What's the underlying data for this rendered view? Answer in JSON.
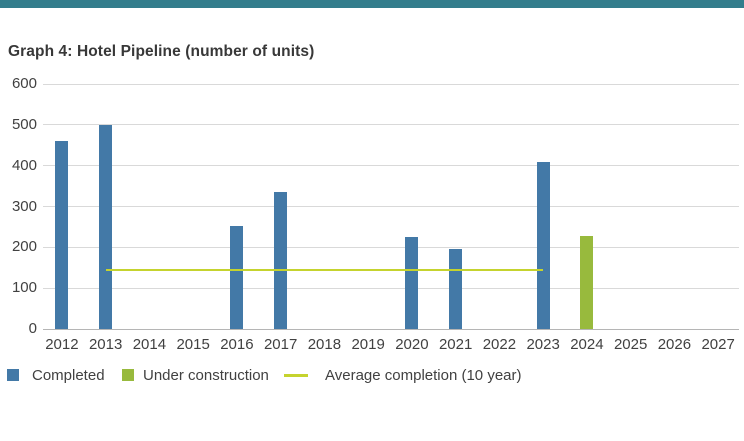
{
  "accent_bar_color": "#337d8c",
  "legend": {
    "items": [
      {
        "label": "Completed",
        "swatch": "square",
        "color": "#4379a7"
      },
      {
        "label": "Under construction",
        "swatch": "square",
        "color": "#98ba3d"
      },
      {
        "label": "Average completion (10 year)",
        "swatch": "line",
        "color": "#c5d32e"
      }
    ]
  },
  "chart_data": {
    "type": "bar",
    "title": "Graph 4: Hotel Pipeline (number of units)",
    "categories": [
      "2012",
      "2013",
      "2014",
      "2015",
      "2016",
      "2017",
      "2018",
      "2019",
      "2020",
      "2021",
      "2022",
      "2023",
      "2024",
      "2025",
      "2026",
      "2027"
    ],
    "series": [
      {
        "name": "Completed",
        "color": "#4379a7",
        "values": [
          460,
          500,
          0,
          0,
          253,
          335,
          0,
          0,
          225,
          196,
          0,
          410,
          0,
          0,
          0,
          0
        ]
      },
      {
        "name": "Under construction",
        "color": "#98ba3d",
        "values": [
          0,
          0,
          0,
          0,
          0,
          0,
          0,
          0,
          0,
          0,
          0,
          0,
          228,
          0,
          0,
          0
        ]
      }
    ],
    "average_line": {
      "label": "Average completion (10 year)",
      "value": 145,
      "color": "#c5d32e",
      "from_category": "2013",
      "to_category": "2023"
    },
    "xlabel": "",
    "ylabel": "",
    "ylim": [
      0,
      600
    ],
    "yticks": [
      0,
      100,
      200,
      300,
      400,
      500,
      600
    ],
    "grid": true,
    "gridline_color": "#d9d9d9",
    "axis_line_color": "#b5b5b5",
    "text_color": "#414141",
    "legend_position": "bottom"
  }
}
